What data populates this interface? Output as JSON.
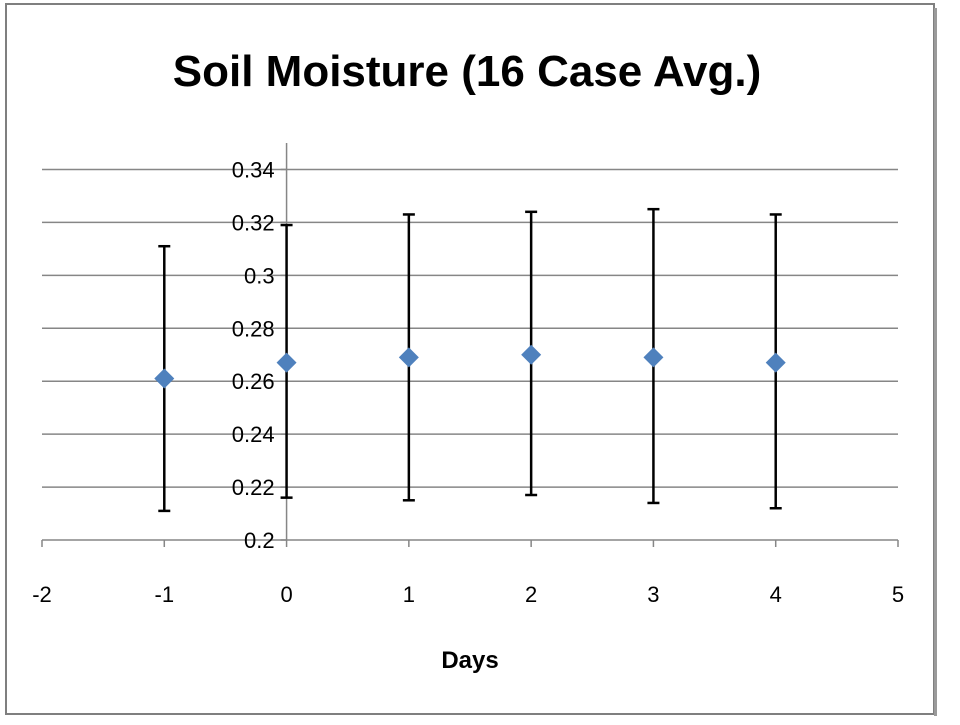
{
  "chart_data": {
    "type": "scatter",
    "title": "Soil Moisture (16 Case Avg.)",
    "xlabel": "Days",
    "ylabel": "",
    "xlim": [
      -2,
      5
    ],
    "ylim": [
      0.2,
      0.34
    ],
    "x_ticks": [
      -2,
      -1,
      0,
      1,
      2,
      3,
      4,
      5
    ],
    "y_ticks": [
      0.2,
      0.22,
      0.24,
      0.26,
      0.28,
      0.3,
      0.32,
      0.34
    ],
    "y_tick_labels": [
      "0.2",
      "0.22",
      "0.24",
      "0.26",
      "0.28",
      "0.3",
      "0.32",
      "0.34"
    ],
    "grid": "horizontal",
    "legend": "none",
    "marker": "diamond",
    "series": [
      {
        "x": [
          -1,
          0,
          1,
          2,
          3,
          4
        ],
        "y": [
          0.261,
          0.267,
          0.269,
          0.27,
          0.269,
          0.267
        ],
        "error_low": [
          0.211,
          0.216,
          0.215,
          0.217,
          0.214,
          0.212
        ],
        "error_high": [
          0.311,
          0.319,
          0.323,
          0.324,
          0.325,
          0.323
        ]
      }
    ],
    "colors": {
      "marker": "#4F81BD",
      "error_bar": "#000000",
      "grid": "#868686",
      "axis": "#868686",
      "frame": "#7F7F7F",
      "text": "#000000"
    }
  }
}
